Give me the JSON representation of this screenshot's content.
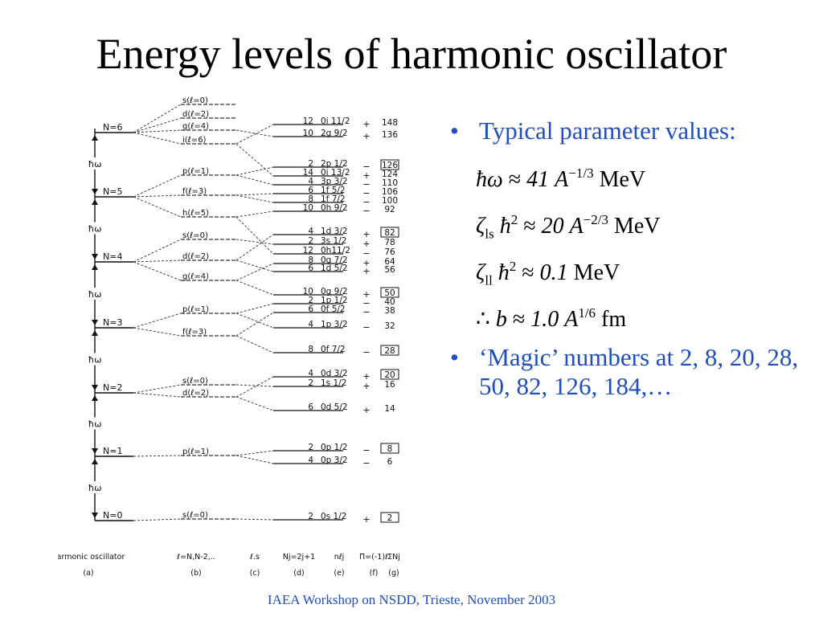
{
  "title": "Energy levels of harmonic oscillator",
  "bullets": {
    "b1": "Typical parameter values:",
    "b2": "‘Magic’ numbers at 2, 8, 20, 28, 50, 82, 126, 184,…"
  },
  "equations": {
    "e1": {
      "lhs": "ħω",
      "val": "41",
      "a": "A",
      "exp": "−1/3",
      "unit": "MeV"
    },
    "e2": {
      "zeta": "ζ",
      "sub": "ls",
      "hbar": "ħ",
      "hexp": "2",
      "val": "20",
      "a": "A",
      "exp": "−2/3",
      "unit": "MeV"
    },
    "e3": {
      "zeta": "ζ",
      "sub": "ll",
      "hbar": "ħ",
      "hexp": "2",
      "val": "0.1",
      "unit": "MeV"
    },
    "e4": {
      "pre": "∴",
      "b": "b",
      "val": "1.0",
      "a": "A",
      "exp": "1/6",
      "unit": "fm"
    }
  },
  "footer": "IAEA Workshop on NSDD, Trieste, November 2003",
  "diagram": {
    "hbar_label": "ħω",
    "shells": [
      {
        "label": "N=6",
        "orbitals": [
          "s(ℓ=0)",
          "d(ℓ=2)",
          "g(ℓ=4)",
          "i(ℓ=6)"
        ]
      },
      {
        "label": "N=5",
        "orbitals": [
          "p(ℓ=1)",
          "f(ℓ=3)",
          "h(ℓ=5)"
        ]
      },
      {
        "label": "N=4",
        "orbitals": [
          "s(ℓ=0)",
          "d(ℓ=2)",
          "g(ℓ=4)"
        ]
      },
      {
        "label": "N=3",
        "orbitals": [
          "p(ℓ=1)",
          "f(ℓ=3)"
        ]
      },
      {
        "label": "N=2",
        "orbitals": [
          "s(ℓ=0)",
          "d(ℓ=2)"
        ]
      },
      {
        "label": "N=1",
        "orbitals": [
          "p(ℓ=1)"
        ]
      },
      {
        "label": "N=0",
        "orbitals": [
          "s(ℓ=0)"
        ]
      }
    ],
    "levels": [
      {
        "nj": "12",
        "state": "0i 11/2",
        "parity": "+",
        "total": "148",
        "boxed": false
      },
      {
        "nj": "10",
        "state": "2g 9/2",
        "parity": "+",
        "total": "136",
        "boxed": false
      },
      {
        "nj": "2",
        "state": "2p 1/2",
        "parity": "−",
        "total": "126",
        "boxed": true
      },
      {
        "nj": "14",
        "state": "0i 13/2",
        "parity": "+",
        "total": "124",
        "boxed": false
      },
      {
        "nj": "4",
        "state": "3p 3/2",
        "parity": "−",
        "total": "110",
        "boxed": false
      },
      {
        "nj": "6",
        "state": "1f 5/2",
        "parity": "−",
        "total": "106",
        "boxed": false
      },
      {
        "nj": "8",
        "state": "1f 7/2",
        "parity": "−",
        "total": "100",
        "boxed": false
      },
      {
        "nj": "10",
        "state": "0h 9/2",
        "parity": "−",
        "total": "92",
        "boxed": false
      },
      {
        "nj": "4",
        "state": "1d 3/2",
        "parity": "+",
        "total": "82",
        "boxed": true
      },
      {
        "nj": "2",
        "state": "3s 1/2",
        "parity": "+",
        "total": "78",
        "boxed": false
      },
      {
        "nj": "12",
        "state": "0h11/2",
        "parity": "−",
        "total": "76",
        "boxed": false
      },
      {
        "nj": "8",
        "state": "0g 7/2",
        "parity": "+",
        "total": "64",
        "boxed": false
      },
      {
        "nj": "6",
        "state": "1d 5/2",
        "parity": "+",
        "total": "56",
        "boxed": false
      },
      {
        "nj": "10",
        "state": "0g 9/2",
        "parity": "+",
        "total": "50",
        "boxed": true
      },
      {
        "nj": "2",
        "state": "1p 1/2",
        "parity": "−",
        "total": "40",
        "boxed": false
      },
      {
        "nj": "6",
        "state": "0f 5/2",
        "parity": "−",
        "total": "38",
        "boxed": false
      },
      {
        "nj": "4",
        "state": "1p 3/2",
        "parity": "−",
        "total": "32",
        "boxed": false
      },
      {
        "nj": "8",
        "state": "0f 7/2",
        "parity": "−",
        "total": "28",
        "boxed": true
      },
      {
        "nj": "4",
        "state": "0d 3/2",
        "parity": "+",
        "total": "20",
        "boxed": true
      },
      {
        "nj": "2",
        "state": "1s 1/2",
        "parity": "+",
        "total": "16",
        "boxed": false
      },
      {
        "nj": "6",
        "state": "0d 5/2",
        "parity": "+",
        "total": "14",
        "boxed": false
      },
      {
        "nj": "2",
        "state": "0p 1/2",
        "parity": "−",
        "total": "8",
        "boxed": true
      },
      {
        "nj": "4",
        "state": "0p 3/2",
        "parity": "−",
        "total": "6",
        "boxed": false
      },
      {
        "nj": "2",
        "state": "0s 1/2",
        "parity": "+",
        "total": "2",
        "boxed": true
      }
    ],
    "columns": [
      {
        "head": "harmonic oscillator",
        "tag": "(a)"
      },
      {
        "head": "ℓ=N,N-2,..",
        "tag": "(b)"
      },
      {
        "head": "ℓ.s",
        "tag": "(c)"
      },
      {
        "head": "Nj=2j+1",
        "tag": "(d)"
      },
      {
        "head": "nℓj",
        "tag": "(e)"
      },
      {
        "head": "Π=(-1)ℓ",
        "tag": "(f)"
      },
      {
        "head": "ΣNj",
        "tag": "(g)"
      }
    ]
  }
}
